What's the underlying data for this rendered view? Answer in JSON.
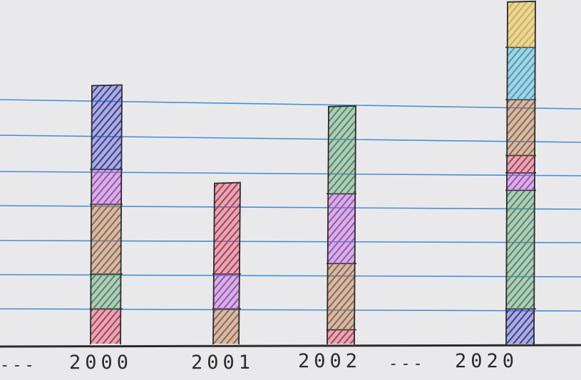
{
  "chart_data": {
    "type": "bar",
    "stacked": true,
    "hand_drawn": true,
    "categories": [
      "2000",
      "2001",
      "2002",
      "2020"
    ],
    "segment_colors": {
      "red": "#c23a55",
      "brown": "#a0673e",
      "green": "#4f8f63",
      "purple": "#a54fc2",
      "blue": "#3d3fa8",
      "cyan": "#3aa4c4",
      "yellow": "#d9b22a"
    },
    "stacks": [
      {
        "category": "2000",
        "segments": [
          {
            "color": "red",
            "value": 1
          },
          {
            "color": "green",
            "value": 1
          },
          {
            "color": "brown",
            "value": 2
          },
          {
            "color": "purple",
            "value": 1
          },
          {
            "color": "blue",
            "value": 2.4
          }
        ]
      },
      {
        "category": "2001",
        "segments": [
          {
            "color": "brown",
            "value": 1
          },
          {
            "color": "purple",
            "value": 1
          },
          {
            "color": "red",
            "value": 2.6
          }
        ]
      },
      {
        "category": "2002",
        "segments": [
          {
            "color": "red",
            "value": 0.4
          },
          {
            "color": "brown",
            "value": 1.9
          },
          {
            "color": "purple",
            "value": 2
          },
          {
            "color": "green",
            "value": 2.5
          }
        ]
      },
      {
        "category": "2020",
        "segments": [
          {
            "color": "blue",
            "value": 1
          },
          {
            "color": "green",
            "value": 3.4
          },
          {
            "color": "purple",
            "value": 0.5
          },
          {
            "color": "red",
            "value": 0.5
          },
          {
            "color": "brown",
            "value": 1.6
          },
          {
            "color": "cyan",
            "value": 1.5
          },
          {
            "color": "yellow",
            "value": 1.3
          }
        ]
      }
    ],
    "axis_breaks": [
      "---",
      "---"
    ],
    "ylim": [
      0,
      9.8
    ],
    "grid": true,
    "legend": false,
    "colors": {
      "paper": "#e9e9ec",
      "rule_line": "#4a8fd0",
      "ink": "#2b2b2b"
    }
  }
}
